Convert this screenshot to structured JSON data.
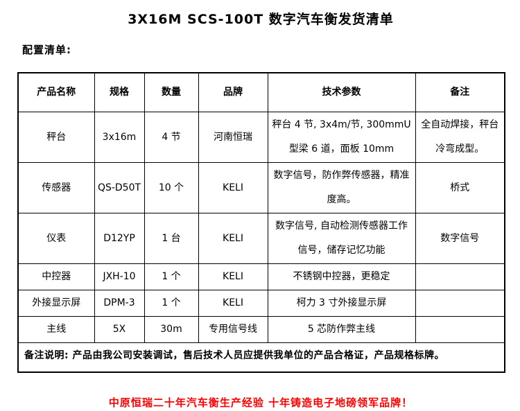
{
  "page": {
    "title": "3X16M SCS-100T 数字汽车衡发货清单",
    "section_label": "配置清单:",
    "slogan": "中原恒瑞二十年汽车衡生产经验 十年铸造电子地磅领军品牌！",
    "slogan_color": "#ff0000"
  },
  "table": {
    "headers": [
      "产品名称",
      "规格",
      "数量",
      "品牌",
      "技术参数",
      "备注"
    ],
    "rows": [
      {
        "cells": [
          "秤台",
          "3x16m",
          "4 节",
          "河南恒瑞",
          "秤台 4 节, 3x4m/节, 300mmU型梁 6 道，面板 10mm",
          "全自动焊接，秤台冷弯成型。"
        ]
      },
      {
        "cells": [
          "传感器",
          "QS-D50T",
          "10 个",
          "KELI",
          "数字信号，防作弊传感器，精准度高。",
          "桥式"
        ]
      },
      {
        "cells": [
          "仪表",
          "D12YP",
          "1 台",
          "KELI",
          "数字信号, 自动检测传感器工作信号，储存记忆功能",
          "数字信号"
        ]
      },
      {
        "cells": [
          "中控器",
          "JXH-10",
          "1 个",
          "KELI",
          "不锈钢中控器，更稳定",
          ""
        ]
      },
      {
        "cells": [
          "外接显示屏",
          "DPM-3",
          "1 个",
          "KELI",
          "柯力 3 寸外接显示屏",
          ""
        ]
      },
      {
        "cells": [
          "主线",
          "5X",
          "30m",
          "专用信号线",
          "5 芯防作弊主线",
          ""
        ]
      }
    ],
    "footer_note": "备注说明: 产品由我公司安装调试，售后技术人员应提供我单位的产品合格证，产品规格标牌。"
  }
}
